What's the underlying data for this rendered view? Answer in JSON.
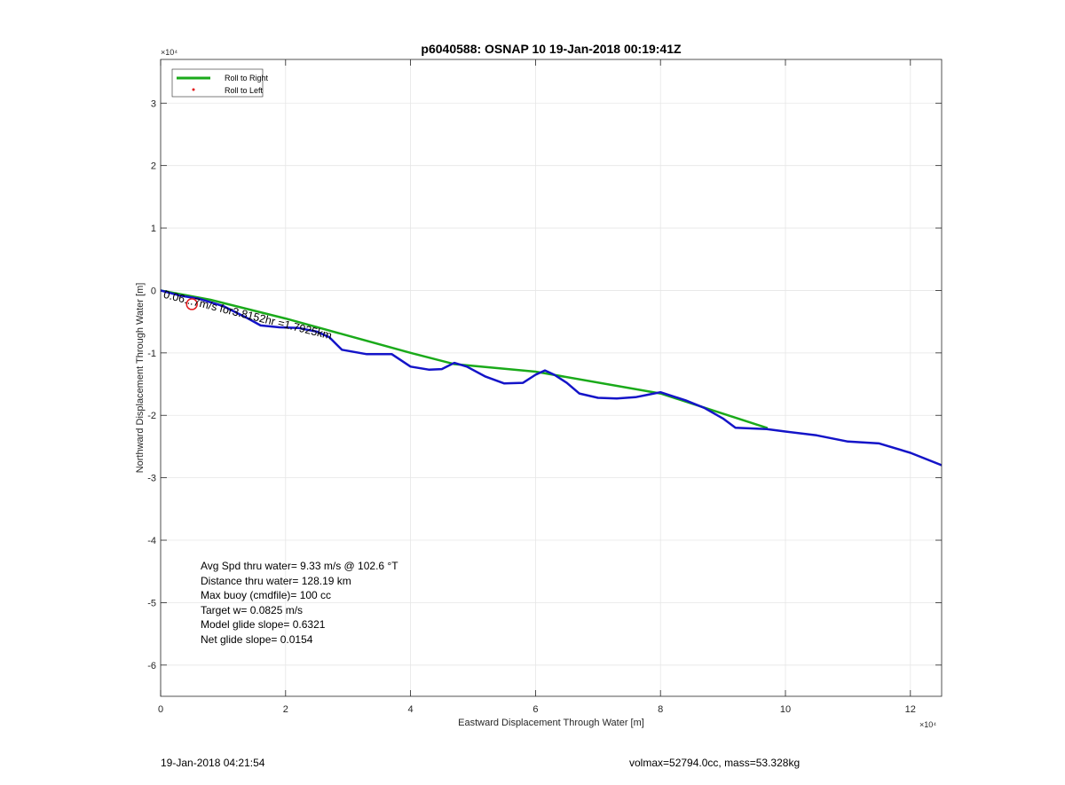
{
  "chart_data": {
    "type": "line",
    "title": "p6040588: OSNAP 10 19-Jan-2018 00:19:41Z",
    "xlabel": "Eastward Displacement Through Water [m]",
    "ylabel": "Northward Displacement Through Water [m]",
    "xlim": [
      0,
      125000
    ],
    "ylim": [
      -65000,
      37000
    ],
    "x_ticks": [
      0,
      20000,
      40000,
      60000,
      80000,
      100000,
      120000
    ],
    "x_tick_labels": [
      "0",
      "2",
      "4",
      "6",
      "8",
      "10",
      "12"
    ],
    "y_ticks": [
      -60000,
      -50000,
      -40000,
      -30000,
      -20000,
      -10000,
      0,
      10000,
      20000,
      30000
    ],
    "y_tick_labels": [
      "-6",
      "-5",
      "-4",
      "-3",
      "-2",
      "-1",
      "0",
      "1",
      "2",
      "3"
    ],
    "x_exponent_label": "×10⁴",
    "y_exponent_label": "×10⁴",
    "grid": true,
    "legend_position": "top-left",
    "legend": [
      {
        "label": "Roll to Right",
        "color": "#1aaa1a",
        "marker": "line"
      },
      {
        "label": "Roll to Left",
        "color": "#e31a1c",
        "marker": "dot"
      }
    ],
    "series": [
      {
        "color": "#1aaa1a",
        "x": [
          0,
          8000,
          20000,
          40000,
          47000,
          60000,
          80000,
          97000
        ],
        "y": [
          0,
          -1500,
          -4500,
          -10000,
          -11800,
          -13000,
          -16500,
          -22000
        ]
      },
      {
        "color": "#1414c8",
        "x": [
          0,
          3000,
          6000,
          10000,
          14000,
          16000,
          19000,
          22000,
          25000,
          27000,
          29000,
          33000,
          37000,
          40000,
          43000,
          45000,
          47000,
          49000,
          52000,
          55000,
          58000,
          60000,
          61500,
          63000,
          65000,
          67000,
          70000,
          73000,
          76000,
          78000,
          80000,
          84000,
          87000,
          90000,
          92000,
          97000,
          100000,
          105000,
          110000,
          115000,
          120000,
          125000
        ],
        "y": [
          0,
          -800,
          -1300,
          -2500,
          -4500,
          -5600,
          -5900,
          -6000,
          -6600,
          -7500,
          -9500,
          -10200,
          -10200,
          -12200,
          -12700,
          -12600,
          -11600,
          -12200,
          -13800,
          -14900,
          -14800,
          -13500,
          -12800,
          -13500,
          -14800,
          -16500,
          -17200,
          -17300,
          -17100,
          -16700,
          -16300,
          -17600,
          -18800,
          -20500,
          -22000,
          -22200,
          -22600,
          -23200,
          -24200,
          -24500,
          -26000,
          -28000
        ]
      }
    ],
    "markers": [
      {
        "type": "circle",
        "color": "#e31a1c",
        "x": 5000,
        "y": -2200
      }
    ],
    "annotation": {
      "text": "0.06...7m/s for3.8152hr =1.7925km",
      "x": 500,
      "y": -600
    },
    "stats": [
      "Avg Spd thru water=  9.33 m/s @ 102.6 °T",
      "Distance thru water= 128.19 km",
      "Max buoy (cmdfile)= 100 cc",
      "Target w= 0.0825 m/s",
      "Model glide slope= 0.6321",
      "Net glide slope= 0.0154"
    ]
  },
  "footer": {
    "timestamp": "19-Jan-2018 04:21:54",
    "vol_mass": "volmax=52794.0cc, mass=53.328kg"
  }
}
